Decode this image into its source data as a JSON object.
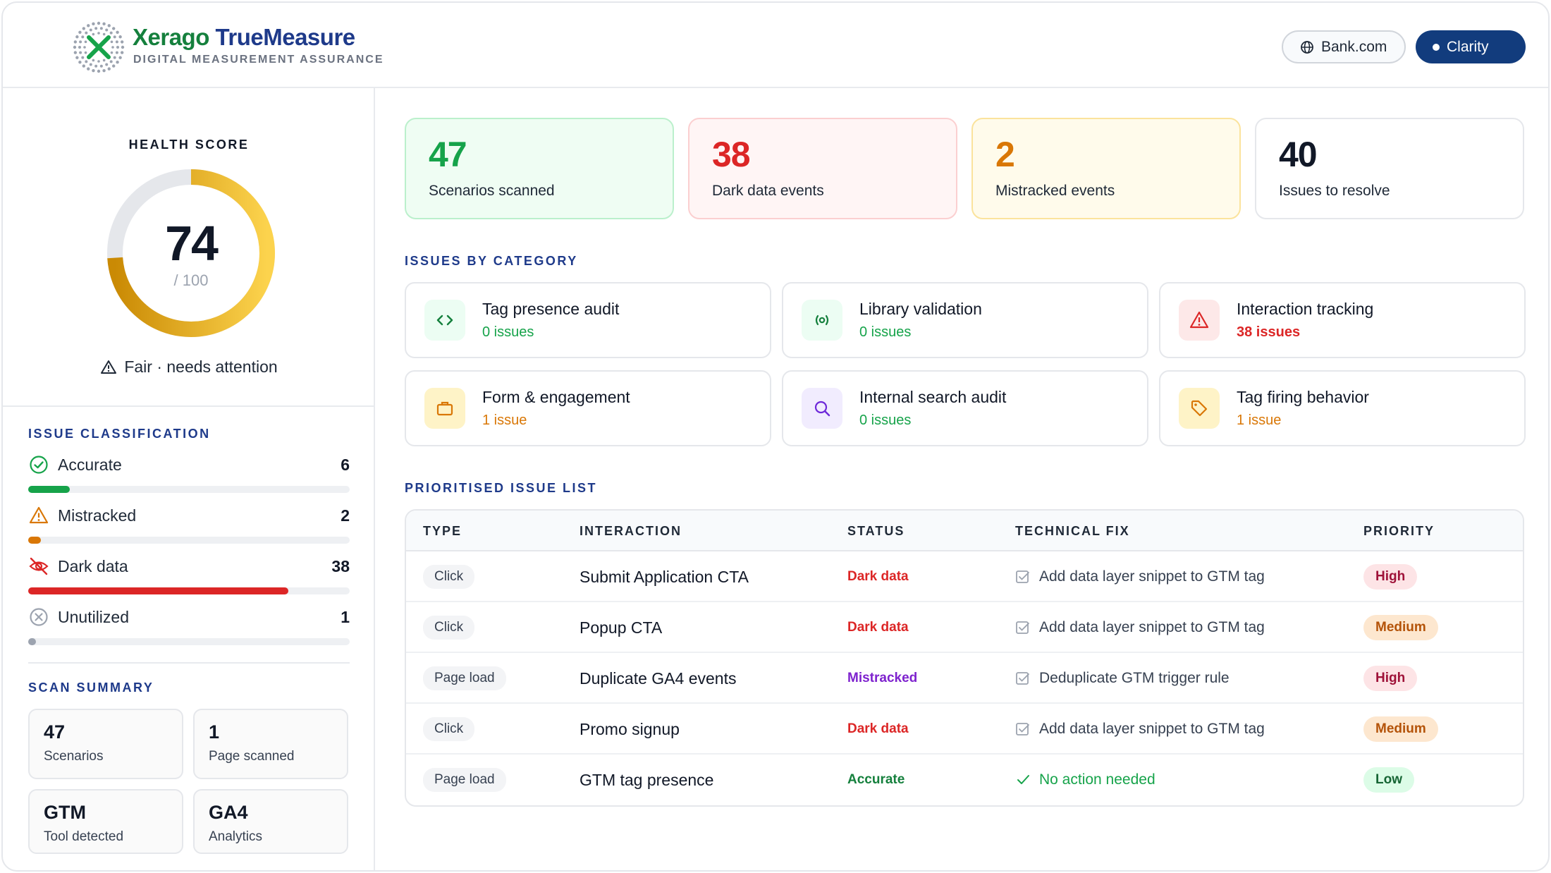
{
  "brand": {
    "name_part1": "Xerago",
    "name_part2": "TrueMeasure",
    "tagline": "DIGITAL MEASUREMENT ASSURANCE"
  },
  "header": {
    "domain_label": "Bank.com",
    "tool_label": "Clarity"
  },
  "health": {
    "title": "HEALTH SCORE",
    "score": "74",
    "denominator": "/ 100",
    "status": "Fair · needs attention",
    "score_value": 74,
    "max": 100
  },
  "classification": {
    "title": "ISSUE CLASSIFICATION",
    "items": [
      {
        "label": "Accurate",
        "count": "6",
        "fraction": 0.13,
        "color": "#16a34a"
      },
      {
        "label": "Mistracked",
        "count": "2",
        "fraction": 0.04,
        "color": "#d97706"
      },
      {
        "label": "Dark data",
        "count": "38",
        "fraction": 0.81,
        "color": "#dc2626"
      },
      {
        "label": "Unutilized",
        "count": "1",
        "fraction": 0.02,
        "color": "#9ca3af"
      }
    ]
  },
  "scan_summary": {
    "title": "SCAN SUMMARY",
    "cards": [
      {
        "value": "47",
        "label": "Scenarios"
      },
      {
        "value": "1",
        "label": "Page scanned"
      },
      {
        "value": "GTM",
        "label": "Tool detected"
      },
      {
        "value": "GA4",
        "label": "Analytics"
      }
    ]
  },
  "stats": [
    {
      "value": "47",
      "label": "Scenarios scanned",
      "color": "#16a34a"
    },
    {
      "value": "38",
      "label": "Dark data events",
      "color": "#dc2626"
    },
    {
      "value": "2",
      "label": "Mistracked events",
      "color": "#d97706"
    },
    {
      "value": "40",
      "label": "Issues to resolve",
      "color": "#111827"
    }
  ],
  "categories": {
    "title": "ISSUES BY CATEGORY",
    "items": [
      {
        "title": "Tag presence audit",
        "count": "0 issues",
        "icon": "code-icon"
      },
      {
        "title": "Library validation",
        "count": "0 issues",
        "icon": "broadcast-icon"
      },
      {
        "title": "Interaction tracking",
        "count": "38 issues",
        "icon": "warning-icon"
      },
      {
        "title": "Form & engagement",
        "count": "1 issue",
        "icon": "briefcase-icon"
      },
      {
        "title": "Internal search audit",
        "count": "0 issues",
        "icon": "search-icon"
      },
      {
        "title": "Tag firing behavior",
        "count": "1 issue",
        "icon": "tag-icon"
      }
    ]
  },
  "issues": {
    "title": "PRIORITISED ISSUE LIST",
    "columns": [
      "TYPE",
      "INTERACTION",
      "STATUS",
      "TECHNICAL FIX",
      "PRIORITY"
    ],
    "rows": [
      {
        "type": "Click",
        "interaction": "Submit Application CTA",
        "status": "Dark data",
        "fix": "Add data layer snippet to GTM tag",
        "priority": "High"
      },
      {
        "type": "Click",
        "interaction": "Popup CTA",
        "status": "Dark data",
        "fix": "Add data layer snippet to GTM tag",
        "priority": "Medium"
      },
      {
        "type": "Page load",
        "interaction": "Duplicate GA4 events",
        "status": "Mistracked",
        "fix": "Deduplicate GTM trigger rule",
        "priority": "High"
      },
      {
        "type": "Click",
        "interaction": "Promo signup",
        "status": "Dark data",
        "fix": "Add data layer snippet to GTM tag",
        "priority": "Medium"
      },
      {
        "type": "Page load",
        "interaction": "GTM tag presence",
        "status": "Accurate",
        "fix": "No action needed",
        "priority": "Low"
      }
    ]
  }
}
